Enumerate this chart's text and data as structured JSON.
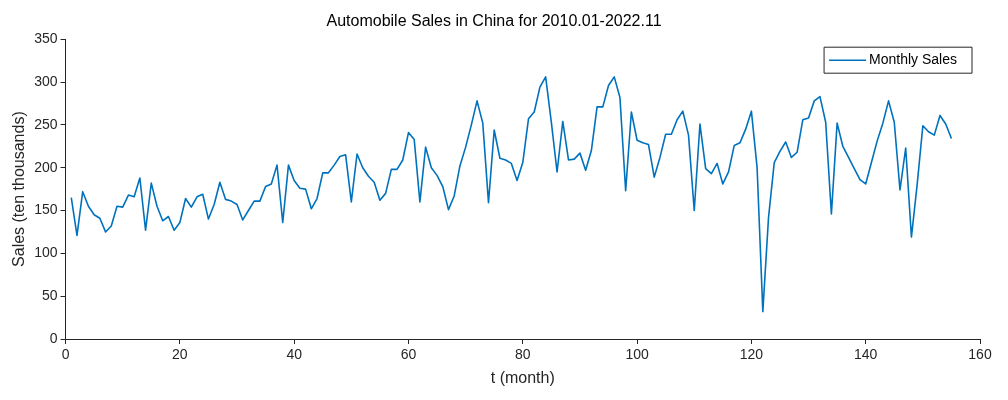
{
  "chart_data": {
    "type": "line",
    "title": "Automobile Sales in China for 2010.01-2022.11",
    "xlabel": "t (month)",
    "ylabel": "Sales (ten thousands)",
    "x": [
      1,
      2,
      3,
      4,
      5,
      6,
      7,
      8,
      9,
      10,
      11,
      12,
      13,
      14,
      15,
      16,
      17,
      18,
      19,
      20,
      21,
      22,
      23,
      24,
      25,
      26,
      27,
      28,
      29,
      30,
      31,
      32,
      33,
      34,
      35,
      36,
      37,
      38,
      39,
      40,
      41,
      42,
      43,
      44,
      45,
      46,
      47,
      48,
      49,
      50,
      51,
      52,
      53,
      54,
      55,
      56,
      57,
      58,
      59,
      60,
      61,
      62,
      63,
      64,
      65,
      66,
      67,
      68,
      69,
      70,
      71,
      72,
      73,
      74,
      75,
      76,
      77,
      78,
      79,
      80,
      81,
      82,
      83,
      84,
      85,
      86,
      87,
      88,
      89,
      90,
      91,
      92,
      93,
      94,
      95,
      96,
      97,
      98,
      99,
      100,
      101,
      102,
      103,
      104,
      105,
      106,
      107,
      108,
      109,
      110,
      111,
      112,
      113,
      114,
      115,
      116,
      117,
      118,
      119,
      120,
      121,
      122,
      123,
      124,
      125,
      126,
      127,
      128,
      129,
      130,
      131,
      132,
      133,
      134,
      135,
      136,
      137,
      138,
      139,
      140,
      141,
      142,
      143,
      144,
      145,
      146,
      147,
      148,
      149,
      150,
      151,
      152,
      153,
      154,
      155
    ],
    "series": [
      {
        "name": "Monthly Sales",
        "color": "#0072bd",
        "values": [
          165,
          121,
          172,
          155,
          145,
          141,
          125,
          132,
          155,
          154,
          168,
          166,
          188,
          127,
          182,
          155,
          138,
          143,
          127,
          136,
          164,
          154,
          166,
          169,
          140,
          157,
          183,
          163,
          161,
          157,
          139,
          150,
          161,
          161,
          178,
          181,
          203,
          136,
          203,
          185,
          176,
          175,
          152,
          164,
          194,
          194,
          203,
          213,
          215,
          160,
          216,
          200,
          190,
          183,
          162,
          170,
          198,
          198,
          209,
          241,
          233,
          160,
          224,
          200,
          191,
          178,
          151,
          167,
          202,
          224,
          250,
          278,
          252,
          159,
          244,
          211,
          209,
          205,
          185,
          206,
          257,
          265,
          294,
          306,
          253,
          195,
          254,
          209,
          210,
          217,
          197,
          220,
          271,
          271,
          296,
          306,
          282,
          173,
          265,
          232,
          229,
          227,
          189,
          212,
          239,
          239,
          256,
          266,
          238,
          150,
          251,
          199,
          193,
          205,
          181,
          195,
          226,
          229,
          245,
          266,
          200,
          32,
          142,
          206,
          219,
          230,
          212,
          218,
          256,
          258,
          278,
          283,
          253,
          146,
          252,
          225,
          212,
          199,
          186,
          181,
          206,
          231,
          252,
          278,
          253,
          174,
          223,
          119,
          180,
          249,
          242,
          238,
          261,
          251,
          234
        ]
      }
    ],
    "xlim": [
      0,
      160
    ],
    "xticks": [
      0,
      20,
      40,
      60,
      80,
      100,
      120,
      140,
      160
    ],
    "ylim": [
      0,
      350
    ],
    "yticks": [
      0,
      50,
      100,
      150,
      200,
      250,
      300,
      350
    ],
    "grid": false,
    "legend": "top right",
    "marker": "none",
    "line_style": "solid"
  }
}
